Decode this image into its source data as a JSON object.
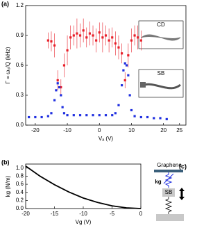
{
  "chart_data": [
    {
      "type": "scatter",
      "panel_label": "(a)",
      "x_label": "Vₐ (V)",
      "y_label": "Γ = ω₀/Q (kHz)",
      "xlim": [
        -23,
        27
      ],
      "xticks": [
        -20,
        -10,
        0,
        10,
        20,
        25
      ],
      "ylim": [
        0,
        1.2
      ],
      "yticks": [
        {
          "value": 0,
          "label": "0.0"
        },
        0.3,
        0.6,
        0.9,
        1.2
      ],
      "insets": [
        {
          "label": "CD"
        },
        {
          "label": "SB"
        }
      ],
      "series": [
        {
          "color": "#e8202a",
          "marker": "square",
          "x": [
            -16,
            -15,
            -14,
            -13,
            -12,
            -11,
            -10,
            -9,
            -8,
            -7,
            -6,
            -5,
            -4,
            -3,
            -2,
            -1,
            0,
            1,
            2,
            3,
            4,
            5,
            6,
            7,
            8,
            9,
            10,
            11,
            12,
            13
          ],
          "values": [
            0.85,
            0.84,
            0.8,
            0.45,
            0.38,
            0.6,
            0.75,
            0.88,
            0.9,
            0.92,
            0.9,
            0.95,
            0.88,
            0.92,
            0.9,
            0.85,
            0.93,
            0.88,
            0.9,
            0.85,
            0.88,
            0.82,
            0.78,
            0.72,
            0.45,
            0.7,
            0.85,
            0.9,
            0.88,
            0.85
          ],
          "errors": [
            0.08,
            0.1,
            0.12,
            0.1,
            0.08,
            0.12,
            0.15,
            0.12,
            0.1,
            0.15,
            0.12,
            0.12,
            0.1,
            0.12,
            0.1,
            0.12,
            0.1,
            0.15,
            0.1,
            0.12,
            0.1,
            0.12,
            0.12,
            0.1,
            0.08,
            0.12,
            0.12,
            0.1,
            0.12,
            0.1
          ]
        },
        {
          "color": "#2030e0",
          "marker": "square",
          "x": [
            -22,
            -20,
            -18,
            -16,
            -15,
            -14,
            -13.5,
            -13,
            -12.5,
            -12,
            -11.5,
            -11,
            -10,
            -8,
            -6,
            -4,
            -2,
            0,
            2,
            4,
            5,
            6,
            7,
            7.5,
            8,
            8.5,
            9,
            9.5,
            10,
            11,
            13,
            15,
            17,
            19,
            21
          ],
          "values": [
            0.08,
            0.08,
            0.08,
            0.09,
            0.12,
            0.25,
            0.35,
            0.42,
            0.38,
            0.3,
            0.18,
            0.12,
            0.1,
            0.1,
            0.1,
            0.1,
            0.1,
            0.1,
            0.1,
            0.1,
            0.12,
            0.2,
            0.4,
            0.55,
            0.62,
            0.6,
            0.5,
            0.3,
            0.15,
            0.09,
            0.08,
            0.08,
            0.07,
            0.07,
            0.06
          ]
        }
      ]
    },
    {
      "type": "line",
      "panel_label": "(b)",
      "x_label": "Vg (V)",
      "y_label": "kg (N/m)",
      "xlim": [
        -20,
        0
      ],
      "xticks": [
        -20,
        -15,
        -10,
        -5,
        0
      ],
      "ylim": [
        0,
        1.1
      ],
      "yticks": [
        {
          "value": 0,
          "label": "0.0"
        },
        0.2,
        0.4,
        0.6,
        0.8,
        {
          "value": 1,
          "label": "1.0"
        }
      ],
      "series": [
        {
          "color": "#000000",
          "x": [
            -20,
            -17.5,
            -15,
            -12.5,
            -10,
            -7.5,
            -5,
            -2.5,
            0
          ],
          "values": [
            1.05,
            0.8,
            0.59,
            0.41,
            0.26,
            0.15,
            0.066,
            0.017,
            0
          ]
        }
      ]
    }
  ],
  "diagram": {
    "panel_label": "(c)",
    "top_label": "Graphene",
    "spring_label": "kg",
    "box_label": "SB"
  }
}
